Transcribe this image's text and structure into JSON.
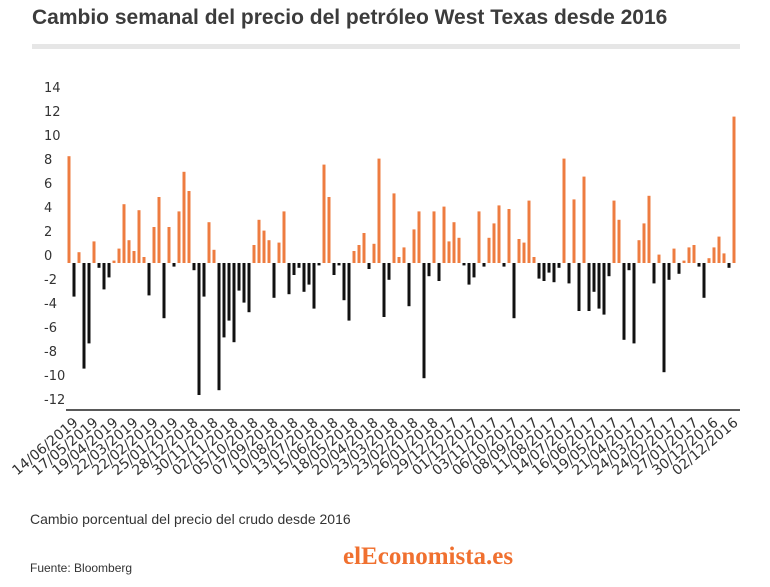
{
  "chart_data": {
    "type": "bar",
    "title": "Cambio semanal del precio del petróleo West Texas desde 2016",
    "caption": "Cambio porcentual del precio del crudo desde 2016",
    "source": "Fuente: Bloomberg",
    "xlabel": "",
    "ylabel": "",
    "ylim": [
      -12,
      14
    ],
    "grid": false,
    "legend": "none",
    "colors": {
      "positive": "#ee7c40",
      "negative": "#111111"
    },
    "yticks": [
      14,
      12,
      10,
      8,
      6,
      4,
      2,
      0,
      -2,
      -4,
      -6,
      -8,
      -10,
      -12
    ],
    "xticks": [
      "14/06/2019",
      "17/05/2019",
      "19/04/2019",
      "22/03/2019",
      "22/02/2019",
      "25/01/2019",
      "28/12/2018",
      "30/11/2018",
      "02/11/2018",
      "05/10/2018",
      "07/09/2018",
      "10/08/2018",
      "13/07/2018",
      "15/06/2018",
      "18/05/2018",
      "20/04/2018",
      "23/03/2018",
      "23/02/2018",
      "26/01/2018",
      "29/12/2017",
      "01/12/2017",
      "03/11/2017",
      "06/10/2017",
      "08/09/2017",
      "11/08/2017",
      "14/07/2017",
      "16/06/2017",
      "19/05/2017",
      "21/04/2017",
      "24/03/2017",
      "24/02/2017",
      "27/01/2017",
      "30/12/2016",
      "02/12/2016"
    ],
    "x": [
      "21/06/2019",
      "14/06/2019",
      "07/06/2019",
      "31/05/2019",
      "24/05/2019",
      "17/05/2019",
      "10/05/2019",
      "03/05/2019",
      "26/04/2019",
      "19/04/2019",
      "12/04/2019",
      "05/04/2019",
      "29/03/2019",
      "22/03/2019",
      "15/03/2019",
      "08/03/2019",
      "01/03/2019",
      "22/02/2019",
      "15/02/2019",
      "08/02/2019",
      "01/02/2019",
      "25/01/2019",
      "18/01/2019",
      "11/01/2019",
      "04/01/2019",
      "28/12/2018",
      "21/12/2018",
      "14/12/2018",
      "07/12/2018",
      "30/11/2018",
      "23/11/2018",
      "16/11/2018",
      "09/11/2018",
      "02/11/2018",
      "26/10/2018",
      "19/10/2018",
      "12/10/2018",
      "05/10/2018",
      "28/09/2018",
      "21/09/2018",
      "14/09/2018",
      "07/09/2018",
      "31/08/2018",
      "24/08/2018",
      "17/08/2018",
      "10/08/2018",
      "03/08/2018",
      "27/07/2018",
      "20/07/2018",
      "13/07/2018",
      "06/07/2018",
      "29/06/2018",
      "22/06/2018",
      "15/06/2018",
      "08/06/2018",
      "01/06/2018",
      "25/05/2018",
      "18/05/2018",
      "11/05/2018",
      "04/05/2018",
      "27/04/2018",
      "20/04/2018",
      "13/04/2018",
      "06/04/2018",
      "30/03/2018",
      "23/03/2018",
      "16/03/2018",
      "09/03/2018",
      "02/03/2018",
      "23/02/2018",
      "16/02/2018",
      "09/02/2018",
      "02/02/2018",
      "26/01/2018",
      "19/01/2018",
      "12/01/2018",
      "05/01/2018",
      "29/12/2017",
      "22/12/2017",
      "15/12/2017",
      "08/12/2017",
      "01/12/2017",
      "24/11/2017",
      "17/11/2017",
      "10/11/2017",
      "03/11/2017",
      "27/10/2017",
      "20/10/2017",
      "13/10/2017",
      "06/10/2017",
      "29/09/2017",
      "22/09/2017",
      "15/09/2017",
      "08/09/2017",
      "01/09/2017",
      "25/08/2017",
      "18/08/2017",
      "11/08/2017",
      "04/08/2017",
      "28/07/2017",
      "21/07/2017",
      "14/07/2017",
      "07/07/2017",
      "30/06/2017",
      "23/06/2017",
      "16/06/2017",
      "09/06/2017",
      "02/06/2017",
      "26/05/2017",
      "19/05/2017",
      "12/05/2017",
      "05/05/2017",
      "28/04/2017",
      "21/04/2017",
      "14/04/2017",
      "07/04/2017",
      "31/03/2017",
      "24/03/2017",
      "17/03/2017",
      "10/03/2017",
      "03/03/2017",
      "24/02/2017",
      "17/02/2017",
      "10/02/2017",
      "03/02/2017",
      "27/01/2017",
      "20/01/2017",
      "13/01/2017",
      "06/01/2017",
      "30/12/2016",
      "23/12/2016",
      "16/12/2016",
      "09/12/2016",
      "02/12/2016"
    ],
    "values": [
      8.9,
      -2.8,
      0.9,
      -8.8,
      -6.7,
      1.8,
      -0.4,
      -2.2,
      -1.2,
      0.2,
      1.2,
      4.9,
      1.9,
      1.0,
      4.4,
      0.5,
      -2.7,
      3.0,
      5.5,
      -4.6,
      3.0,
      -0.3,
      4.3,
      7.6,
      6.0,
      -0.6,
      -11.0,
      -2.8,
      3.4,
      1.1,
      -10.6,
      -6.2,
      -4.8,
      -6.6,
      -2.3,
      -3.3,
      -4.1,
      1.5,
      3.6,
      2.7,
      1.9,
      -2.9,
      1.7,
      4.3,
      -2.6,
      -1.0,
      -0.4,
      -2.4,
      -1.8,
      -3.8,
      -0.2,
      8.2,
      5.5,
      -1.0,
      -0.2,
      -3.1,
      -4.8,
      1.0,
      1.5,
      2.5,
      -0.5,
      1.6,
      8.7,
      -4.5,
      -1.4,
      5.8,
      0.5,
      1.3,
      -3.6,
      2.8,
      4.3,
      -9.6,
      -1.1,
      4.3,
      -1.5,
      4.7,
      1.8,
      3.4,
      2.1,
      -0.2,
      -1.8,
      -1.2,
      4.3,
      -0.3,
      2.1,
      3.3,
      4.8,
      -0.3,
      4.5,
      -4.6,
      2.0,
      1.7,
      5.2,
      0.5,
      -1.3,
      -1.5,
      -0.8,
      -1.6,
      -0.4,
      8.7,
      -1.7,
      5.3,
      -4.0,
      7.2,
      -4.0,
      -2.4,
      -3.8,
      -4.3,
      -1.1,
      5.2,
      3.6,
      -6.4,
      -0.6,
      -6.7,
      1.9,
      3.3,
      5.6,
      -1.7,
      0.7,
      -9.1,
      -1.4,
      1.2,
      -0.9,
      0.2,
      1.3,
      1.5,
      -0.3,
      -2.9,
      0.4,
      1.3,
      2.2,
      0.8,
      -0.4,
      12.2
    ]
  },
  "logo": {
    "text": "elEconomista.es",
    "color": "#f0702f"
  }
}
